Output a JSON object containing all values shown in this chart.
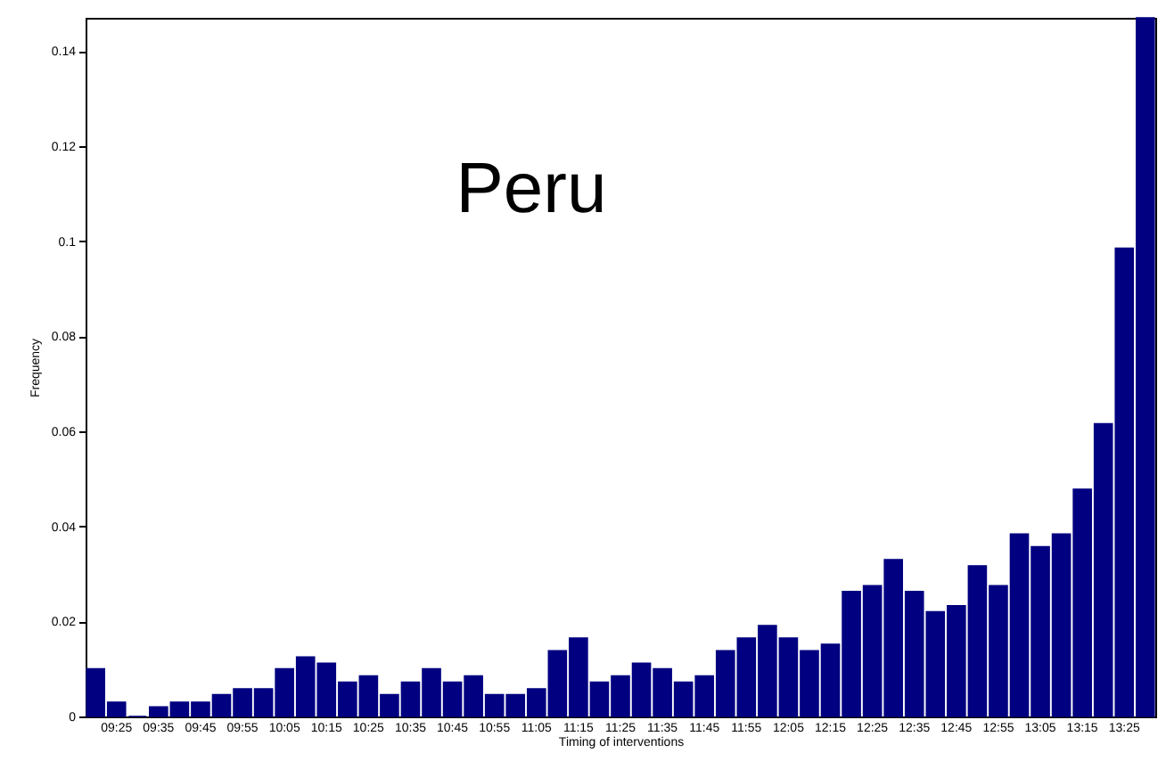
{
  "chart_data": {
    "type": "bar",
    "title": "Peru",
    "xlabel": "Timing of interventions",
    "ylabel": "Frequency",
    "categories": [
      null,
      "09:25",
      null,
      "09:35",
      null,
      "09:45",
      null,
      "09:55",
      null,
      "10:05",
      null,
      "10:15",
      null,
      "10:25",
      null,
      "10:35",
      null,
      "10:45",
      null,
      "10:55",
      null,
      "11:05",
      null,
      "11:15",
      null,
      "11:25",
      null,
      "11:35",
      null,
      "11:45",
      null,
      "11:55",
      null,
      "12:05",
      null,
      "12:15",
      null,
      "12:25",
      null,
      "12:35",
      null,
      "12:45",
      null,
      "12:55",
      null,
      "13:05",
      null,
      "13:15",
      null,
      "13:25",
      null
    ],
    "values": [
      0.01,
      0.003,
      0,
      0.002,
      0.003,
      0.003,
      0.0046,
      0.0058,
      0.0058,
      0.01,
      0.0125,
      0.0112,
      0.0072,
      0.0085,
      0.0046,
      0.0072,
      0.01,
      0.0072,
      0.0085,
      0.0046,
      0.0046,
      0.0058,
      0.0138,
      0.0165,
      0.0072,
      0.0085,
      0.0112,
      0.01,
      0.0072,
      0.0085,
      0.0138,
      0.0165,
      0.0191,
      0.0165,
      0.0138,
      0.0152,
      0.0263,
      0.0275,
      0.033,
      0.0263,
      0.022,
      0.0233,
      0.0317,
      0.0275,
      0.0384,
      0.0357,
      0.0384,
      0.0478,
      0.0616,
      0.0985,
      0.147
    ],
    "color": "#000080",
    "ylim": [
      0,
      0.147
    ],
    "yticks": [
      0,
      0.02,
      0.04,
      0.06,
      0.08,
      0.1,
      0.12,
      0.14
    ],
    "grid": false
  }
}
